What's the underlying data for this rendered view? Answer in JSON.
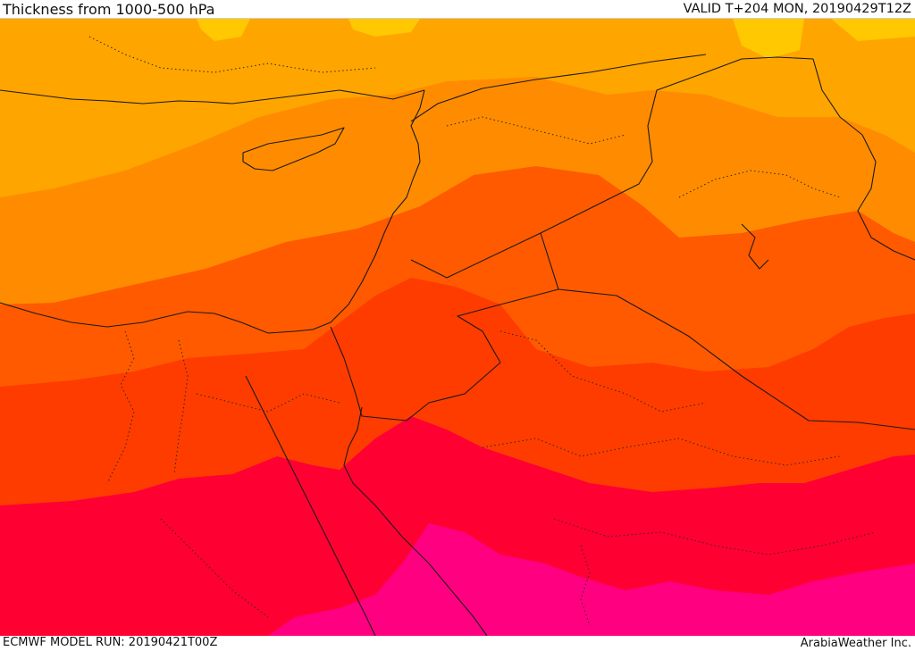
{
  "header": {
    "title": "Thickness from 1000-500 hPa",
    "valid": "VALID T+204 MON, 20190429T12Z"
  },
  "footer": {
    "model_run": "ECMWF MODEL RUN: 20190421T00Z",
    "credit": "ArabiaWeather Inc."
  },
  "map": {
    "field": "1000-500 hPa thickness",
    "region": "Eastern Mediterranean and Middle East",
    "bands": [
      {
        "name": "band-yellow",
        "color": "#FFC800"
      },
      {
        "name": "band-light-orange",
        "color": "#FFA500"
      },
      {
        "name": "band-orange",
        "color": "#FF8C00"
      },
      {
        "name": "band-dark-orange",
        "color": "#FF5A00"
      },
      {
        "name": "band-red-orange",
        "color": "#FF3C00"
      },
      {
        "name": "band-red",
        "color": "#FF0033"
      },
      {
        "name": "band-magenta",
        "color": "#FF0080"
      }
    ]
  }
}
